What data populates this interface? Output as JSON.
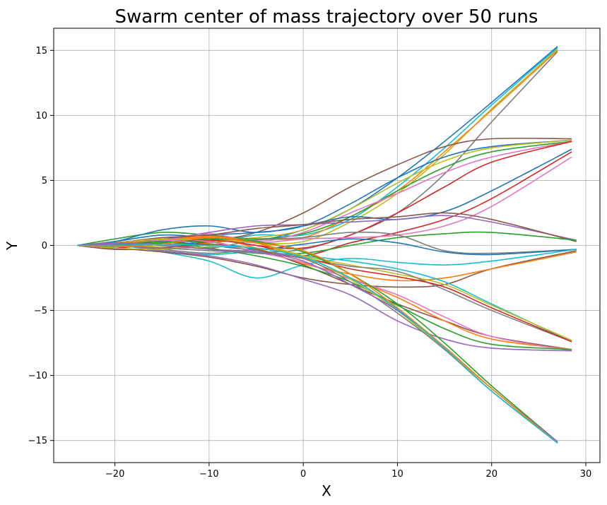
{
  "chart_data": {
    "type": "line",
    "title": "Swarm center of mass trajectory over 50 runs",
    "xlabel": "X",
    "ylabel": "Y",
    "xlim": [
      -26.5,
      31.5
    ],
    "ylim": [
      -16.7,
      16.7
    ],
    "xticks": [
      -20,
      -10,
      0,
      10,
      20,
      30
    ],
    "yticks": [
      -15,
      -10,
      -5,
      0,
      5,
      10,
      15
    ],
    "xtick_labels": [
      "−20",
      "−10",
      "0",
      "10",
      "20",
      "30"
    ],
    "ytick_labels": [
      "−15",
      "−10",
      "−5",
      "0",
      "5",
      "10",
      "15"
    ],
    "grid": true,
    "legend": "none",
    "colors": [
      "#1f77b4",
      "#ff7f0e",
      "#2ca02c",
      "#d62728",
      "#9467bd",
      "#8c564b",
      "#e377c2",
      "#7f7f7f",
      "#bcbd22",
      "#17becf"
    ],
    "series": [
      {
        "color": "#1f77b4",
        "x": [
          -24,
          -20,
          -15,
          -10,
          -5,
          0,
          5,
          10,
          15,
          20,
          27
        ],
        "y": [
          0,
          0.3,
          0.8,
          0.6,
          0.4,
          1.2,
          2.8,
          5.2,
          8.0,
          11.0,
          15.3
        ]
      },
      {
        "color": "#17becf",
        "x": [
          -24,
          -20,
          -15,
          -10,
          -5,
          0,
          5,
          10,
          15,
          20,
          27
        ],
        "y": [
          0,
          0.2,
          0.5,
          0.2,
          0.8,
          0.8,
          2.0,
          4.5,
          7.5,
          10.8,
          15.2
        ]
      },
      {
        "color": "#bcbd22",
        "x": [
          -24,
          -20,
          -15,
          -10,
          -5,
          0,
          5,
          10,
          15,
          20,
          27
        ],
        "y": [
          0,
          -0.2,
          0.1,
          0.5,
          0.2,
          0.3,
          1.8,
          4.0,
          7.0,
          10.5,
          15.1
        ]
      },
      {
        "color": "#ff7f0e",
        "x": [
          -24,
          -20,
          -15,
          -10,
          -5,
          0,
          5,
          10,
          15,
          20,
          27
        ],
        "y": [
          0,
          0.1,
          -0.3,
          0.2,
          0.5,
          0.6,
          2.2,
          4.2,
          7.2,
          10.4,
          15.0
        ]
      },
      {
        "color": "#7f7f7f",
        "x": [
          -24,
          -20,
          -15,
          -10,
          -5,
          0,
          5,
          10,
          15,
          20,
          27
        ],
        "y": [
          0,
          0.1,
          0.3,
          -0.3,
          -0.5,
          -0.3,
          0.8,
          2.5,
          5.5,
          9.5,
          14.9
        ]
      },
      {
        "color": "#8c564b",
        "x": [
          -24,
          -20,
          -15,
          -10,
          -5,
          0,
          5,
          10,
          15,
          20,
          28.5
        ],
        "y": [
          0,
          -0.3,
          -0.2,
          0.3,
          1.0,
          2.5,
          4.5,
          6.2,
          7.6,
          8.2,
          8.2
        ]
      },
      {
        "color": "#1f77b4",
        "x": [
          -24,
          -20,
          -15,
          -10,
          -5,
          0,
          5,
          10,
          15,
          20,
          28.5
        ],
        "y": [
          0,
          0.2,
          0.5,
          0.8,
          1.0,
          1.5,
          3.2,
          5.2,
          6.8,
          7.6,
          8.1
        ]
      },
      {
        "color": "#bcbd22",
        "x": [
          -24,
          -20,
          -15,
          -10,
          -5,
          0,
          5,
          10,
          15,
          20,
          28.5
        ],
        "y": [
          0,
          0.2,
          -0.1,
          0.4,
          0.6,
          1.2,
          2.8,
          4.8,
          6.5,
          7.5,
          8.1
        ]
      },
      {
        "color": "#2ca02c",
        "x": [
          -24,
          -20,
          -15,
          -10,
          -5,
          0,
          5,
          10,
          15,
          20,
          28.5
        ],
        "y": [
          0,
          0.5,
          1.0,
          0.8,
          0.5,
          0.9,
          2.2,
          4.2,
          6.0,
          7.2,
          8.0
        ]
      },
      {
        "color": "#e377c2",
        "x": [
          -24,
          -20,
          -15,
          -10,
          -5,
          0,
          5,
          10,
          15,
          20,
          28.5
        ],
        "y": [
          0,
          0.1,
          0.4,
          0.9,
          0.3,
          1.0,
          2.5,
          4.0,
          5.6,
          6.8,
          8.0
        ]
      },
      {
        "color": "#d62728",
        "x": [
          -24,
          -20,
          -15,
          -10,
          -5,
          0,
          5,
          10,
          15,
          20,
          28.5
        ],
        "y": [
          0,
          0.0,
          0.2,
          0.5,
          0.0,
          -0.2,
          0.8,
          2.5,
          4.5,
          6.4,
          8.0
        ]
      },
      {
        "color": "#1f77b4",
        "x": [
          -24,
          -20,
          -15,
          -10,
          -5,
          0,
          5,
          10,
          15,
          20,
          28.5
        ],
        "y": [
          0,
          0.3,
          1.2,
          1.5,
          1.0,
          1.5,
          2.2,
          2.0,
          2.6,
          4.2,
          7.4
        ]
      },
      {
        "color": "#d62728",
        "x": [
          -24,
          -20,
          -15,
          -10,
          -5,
          0,
          5,
          10,
          15,
          20,
          28.5
        ],
        "y": [
          0,
          -0.2,
          0.2,
          0.3,
          -0.5,
          -0.8,
          0.2,
          1.0,
          2.0,
          3.6,
          7.2
        ]
      },
      {
        "color": "#e377c2",
        "x": [
          -24,
          -20,
          -15,
          -10,
          -5,
          0,
          5,
          10,
          15,
          20,
          28.5
        ],
        "y": [
          0,
          -0.1,
          0.3,
          0.6,
          0.2,
          0.5,
          0.6,
          0.8,
          1.5,
          3.0,
          6.8
        ]
      },
      {
        "color": "#9467bd",
        "x": [
          -24,
          -20,
          -15,
          -10,
          -5,
          0,
          5,
          10,
          15,
          20,
          29
        ],
        "y": [
          0,
          0.1,
          0.4,
          1.0,
          1.5,
          1.6,
          1.8,
          2.0,
          2.3,
          1.8,
          0.4
        ]
      },
      {
        "color": "#8c564b",
        "x": [
          -24,
          -20,
          -15,
          -10,
          -5,
          0,
          5,
          10,
          15,
          20,
          29
        ],
        "y": [
          0,
          0.2,
          0.6,
          0.8,
          1.3,
          1.6,
          2.0,
          2.2,
          2.5,
          2.0,
          0.3
        ]
      },
      {
        "color": "#2ca02c",
        "x": [
          -24,
          -20,
          -15,
          -10,
          -5,
          0,
          5,
          10,
          15,
          20,
          29
        ],
        "y": [
          0,
          0.1,
          -0.2,
          0.3,
          -0.5,
          -0.6,
          0.0,
          0.6,
          0.9,
          1.0,
          0.4
        ]
      },
      {
        "color": "#7f7f7f",
        "x": [
          -24,
          -20,
          -15,
          -10,
          -5,
          0,
          5,
          10,
          15,
          20,
          29
        ],
        "y": [
          0,
          0.0,
          0.1,
          -0.2,
          0.4,
          0.6,
          1.0,
          0.8,
          -0.4,
          -0.6,
          -0.3
        ]
      },
      {
        "color": "#1f77b4",
        "x": [
          -24,
          -20,
          -15,
          -10,
          -5,
          0,
          5,
          10,
          15,
          20,
          29
        ],
        "y": [
          0,
          -0.1,
          0.3,
          0.0,
          -0.3,
          0.1,
          0.5,
          0.2,
          -0.5,
          -0.7,
          -0.3
        ]
      },
      {
        "color": "#17becf",
        "x": [
          -24,
          -20,
          -15,
          -10,
          -5,
          0,
          5,
          10,
          15,
          20,
          29
        ],
        "y": [
          0,
          0.1,
          -0.5,
          -1.2,
          -2.5,
          -1.5,
          -1.0,
          -1.3,
          -1.5,
          -1.2,
          -0.3
        ]
      },
      {
        "color": "#8c564b",
        "x": [
          -24,
          -20,
          -15,
          -10,
          -5,
          0,
          5,
          10,
          15,
          20,
          29
        ],
        "y": [
          0,
          -0.2,
          -0.5,
          -0.9,
          -1.6,
          -2.5,
          -3.0,
          -3.2,
          -3.0,
          -1.8,
          -0.4
        ]
      },
      {
        "color": "#ff7f0e",
        "x": [
          -24,
          -20,
          -15,
          -10,
          -5,
          0,
          5,
          10,
          15,
          20,
          29
        ],
        "y": [
          0,
          0.0,
          0.4,
          0.6,
          -0.2,
          -1.4,
          -2.2,
          -2.7,
          -2.5,
          -1.8,
          -0.5
        ]
      },
      {
        "color": "#17becf",
        "x": [
          -24,
          -20,
          -15,
          -10,
          -5,
          0,
          5,
          10,
          15,
          20,
          28.5
        ],
        "y": [
          0,
          0.0,
          -0.4,
          -0.7,
          -0.5,
          -0.8,
          -1.2,
          -1.8,
          -2.8,
          -4.5,
          -7.4
        ]
      },
      {
        "color": "#bcbd22",
        "x": [
          -24,
          -20,
          -15,
          -10,
          -5,
          0,
          5,
          10,
          15,
          20,
          28.5
        ],
        "y": [
          0,
          0.2,
          0.5,
          0.4,
          0.2,
          -0.8,
          -1.5,
          -2.2,
          -3.0,
          -4.6,
          -7.3
        ]
      },
      {
        "color": "#7f7f7f",
        "x": [
          -24,
          -20,
          -15,
          -10,
          -5,
          0,
          5,
          10,
          15,
          20,
          28.5
        ],
        "y": [
          0,
          0.1,
          -0.3,
          -0.6,
          -0.4,
          -1.0,
          -1.6,
          -2.0,
          -3.4,
          -5.0,
          -7.4
        ]
      },
      {
        "color": "#d62728",
        "x": [
          -24,
          -20,
          -15,
          -10,
          -5,
          0,
          5,
          10,
          15,
          20,
          28.5
        ],
        "y": [
          0,
          -0.1,
          0.2,
          0.4,
          0.0,
          -0.9,
          -1.8,
          -2.4,
          -3.2,
          -4.8,
          -7.4
        ]
      },
      {
        "color": "#8c564b",
        "x": [
          -24,
          -20,
          -15,
          -10,
          -5,
          0,
          5,
          10,
          15,
          20,
          28.5
        ],
        "y": [
          0,
          -0.3,
          -0.2,
          0.1,
          -0.3,
          -1.5,
          -3.0,
          -4.5,
          -5.8,
          -7.0,
          -8.0
        ]
      },
      {
        "color": "#ff7f0e",
        "x": [
          -24,
          -20,
          -15,
          -10,
          -5,
          0,
          5,
          10,
          15,
          20,
          28.5
        ],
        "y": [
          0,
          0.2,
          0.4,
          0.7,
          0.2,
          -1.0,
          -2.5,
          -4.0,
          -5.8,
          -7.2,
          -8.0
        ]
      },
      {
        "color": "#e377c2",
        "x": [
          -24,
          -20,
          -15,
          -10,
          -5,
          0,
          5,
          10,
          15,
          20,
          28.5
        ],
        "y": [
          0,
          0.0,
          0.4,
          0.3,
          -0.5,
          -1.3,
          -2.6,
          -3.8,
          -5.5,
          -7.0,
          -8.1
        ]
      },
      {
        "color": "#9467bd",
        "x": [
          -24,
          -20,
          -15,
          -10,
          -5,
          0,
          5,
          10,
          15,
          20,
          28.5
        ],
        "y": [
          0,
          0.1,
          -0.4,
          -0.8,
          -1.5,
          -2.6,
          -3.8,
          -5.8,
          -7.2,
          -7.9,
          -8.1
        ]
      },
      {
        "color": "#2ca02c",
        "x": [
          -24,
          -20,
          -15,
          -10,
          -5,
          0,
          5,
          10,
          15,
          20,
          28.5
        ],
        "y": [
          0,
          0.0,
          0.3,
          -0.2,
          -0.8,
          -1.6,
          -2.8,
          -4.6,
          -6.4,
          -7.6,
          -8.0
        ]
      },
      {
        "color": "#bcbd22",
        "x": [
          -24,
          -20,
          -15,
          -10,
          -5,
          0,
          5,
          10,
          15,
          20,
          27
        ],
        "y": [
          0,
          -0.2,
          -0.3,
          -0.1,
          -0.2,
          -0.8,
          -2.6,
          -5.0,
          -8.0,
          -11.0,
          -15.2
        ]
      },
      {
        "color": "#2ca02c",
        "x": [
          -24,
          -20,
          -15,
          -10,
          -5,
          0,
          5,
          10,
          15,
          20,
          27
        ],
        "y": [
          0,
          -0.1,
          0.2,
          0.5,
          0.3,
          -0.5,
          -2.2,
          -4.5,
          -7.5,
          -10.8,
          -15.1
        ]
      },
      {
        "color": "#7f7f7f",
        "x": [
          -24,
          -20,
          -15,
          -10,
          -5,
          0,
          5,
          10,
          15,
          20,
          27
        ],
        "y": [
          0,
          0.0,
          -0.2,
          -0.4,
          -0.6,
          -1.0,
          -2.8,
          -5.2,
          -8.0,
          -11.2,
          -15.2
        ]
      },
      {
        "color": "#9467bd",
        "x": [
          -24,
          -20,
          -15,
          -10,
          -5,
          0,
          5,
          10,
          15,
          20,
          27
        ],
        "y": [
          0,
          0.2,
          0.0,
          -0.3,
          -0.5,
          -1.2,
          -3.0,
          -5.0,
          -7.8,
          -11.0,
          -15.1
        ]
      },
      {
        "color": "#ff7f0e",
        "x": [
          -24,
          -20,
          -15,
          -10,
          -5,
          0,
          5,
          10,
          15,
          20,
          27
        ],
        "y": [
          0,
          -0.1,
          0.1,
          0.6,
          0.2,
          -0.4,
          -2.2,
          -4.8,
          -7.8,
          -11.0,
          -15.2
        ]
      },
      {
        "color": "#17becf",
        "x": [
          -24,
          -20,
          -15,
          -10,
          -5,
          0,
          5,
          10,
          15,
          20,
          27
        ],
        "y": [
          0,
          0.0,
          0.1,
          0.0,
          -0.2,
          -0.9,
          -2.5,
          -4.9,
          -7.9,
          -11.2,
          -15.2
        ]
      }
    ]
  }
}
